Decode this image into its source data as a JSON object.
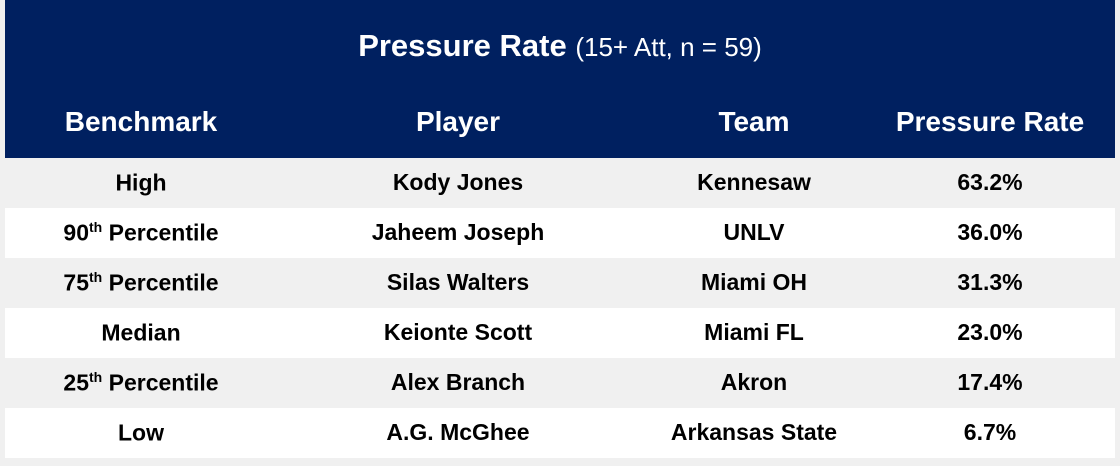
{
  "chart_data": {
    "type": "table",
    "title": "Pressure Rate",
    "subtitle": "(15+ Att, n = 59)",
    "columns": [
      "Benchmark",
      "Player",
      "Team",
      "Pressure Rate"
    ],
    "rows": [
      {
        "bench_num": "",
        "bench_sup": "",
        "bench_text": "High",
        "player": "Kody Jones",
        "team": "Kennesaw",
        "rate": "63.2%"
      },
      {
        "bench_num": "90",
        "bench_sup": "th",
        "bench_text": " Percentile",
        "player": "Jaheem Joseph",
        "team": "UNLV",
        "rate": "36.0%"
      },
      {
        "bench_num": "75",
        "bench_sup": "th",
        "bench_text": " Percentile",
        "player": "Silas Walters",
        "team": "Miami OH",
        "rate": "31.3%"
      },
      {
        "bench_num": "",
        "bench_sup": "",
        "bench_text": "Median",
        "player": "Keionte Scott",
        "team": "Miami FL",
        "rate": "23.0%"
      },
      {
        "bench_num": "25",
        "bench_sup": "th",
        "bench_text": " Percentile",
        "player": "Alex Branch",
        "team": "Akron",
        "rate": "17.4%"
      },
      {
        "bench_num": "",
        "bench_sup": "",
        "bench_text": "Low",
        "player": "A.G. McGhee",
        "team": "Arkansas State",
        "rate": "6.7%"
      }
    ],
    "colors": {
      "header": "#002060",
      "row_alt": "#ffffff",
      "row": "#f0f0f0"
    }
  }
}
